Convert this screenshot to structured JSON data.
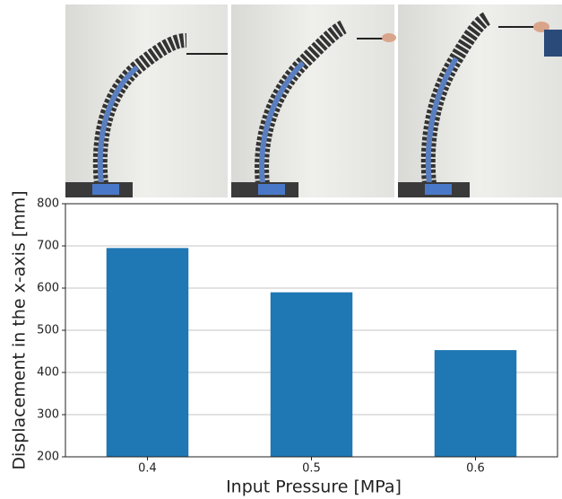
{
  "chart_data": {
    "type": "bar",
    "xlabel": "Input Pressure [MPa]",
    "ylabel": "Displacement in the x-axis [mm]",
    "categories": [
      "0.4",
      "0.5",
      "0.6"
    ],
    "values": [
      695,
      590,
      453
    ],
    "color": "#1f77b4",
    "ylim": [
      200,
      800
    ],
    "yticks": [
      200,
      300,
      400,
      500,
      600,
      700,
      800
    ],
    "grid": true
  }
}
